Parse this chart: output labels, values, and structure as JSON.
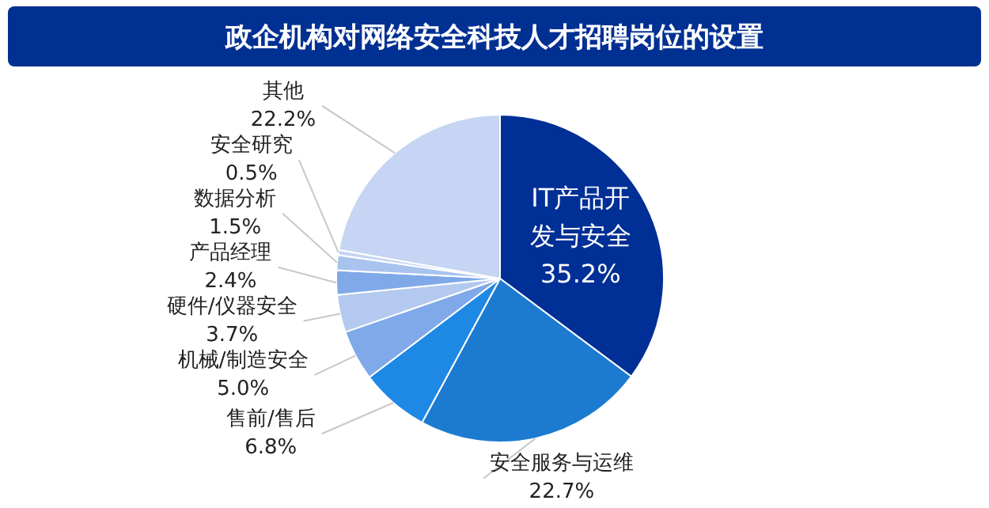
{
  "chart_data": {
    "type": "pie",
    "title": "政企机构对网络安全科技人才招聘岗位的设置",
    "categories": [
      "IT产品开发与安全",
      "安全服务与运维",
      "售前/售后",
      "机械/制造安全",
      "硬件/仪器安全",
      "产品经理",
      "数据分析",
      "安全研究",
      "其他"
    ],
    "values": [
      35.2,
      22.7,
      6.8,
      5.0,
      3.7,
      2.4,
      1.5,
      0.5,
      22.2
    ],
    "value_labels": [
      "35.2%",
      "22.7%",
      "6.8%",
      "5.0%",
      "3.7%",
      "2.4%",
      "1.5%",
      "0.5%",
      "22.2%"
    ],
    "colors": [
      "#002f96",
      "#1c7bd0",
      "#1e88e5",
      "#7fa9e8",
      "#b4c9ef",
      "#7fa9e8",
      "#a9c3ef",
      "#c5d5f3",
      "#c5d5f3"
    ],
    "legend": false
  }
}
